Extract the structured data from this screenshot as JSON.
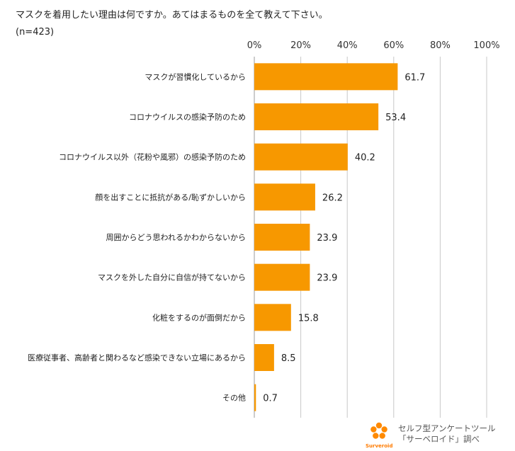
{
  "header": {
    "title": "マスクを着用したい理由は何ですか。あてはまるものを全て教えて下さい。",
    "sample": "(n=423)"
  },
  "chart_data": {
    "type": "bar",
    "orientation": "horizontal",
    "categories": [
      "マスクが習慣化しているから",
      "コロナウイルスの感染予防のため",
      "コロナウイルス以外（花粉や風邪）の感染予防のため",
      "顔を出すことに抵抗がある/恥ずかしいから",
      "周囲からどう思われるかわからないから",
      "マスクを外した自分に自信が持てないから",
      "化粧をするのが面倒だから",
      "医療従事者、高齢者と関わるなど感染できない立場にあるから",
      "その他"
    ],
    "values": [
      61.7,
      53.4,
      40.2,
      26.2,
      23.9,
      23.9,
      15.8,
      8.5,
      0.7
    ],
    "value_labels": [
      "61.7",
      "53.4",
      "40.2",
      "26.2",
      "23.9",
      "23.9",
      "15.8",
      "8.5",
      "0.7"
    ],
    "x_ticks": [
      "0%",
      "20%",
      "40%",
      "60%",
      "80%",
      "100%"
    ],
    "xlim": [
      0,
      100
    ],
    "bar_color": "#f79800",
    "grid": "vertical",
    "axis_position": "top"
  },
  "branding": {
    "line1": "セルフ型アンケートツール",
    "line2": "「サーベロイド」調べ",
    "logo_name": "Surveroid",
    "logo_color": "#ff7b00"
  }
}
